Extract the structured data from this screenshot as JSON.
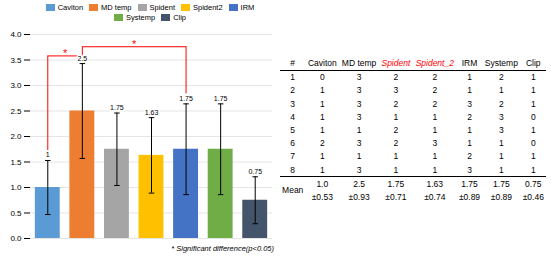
{
  "chart_data": {
    "type": "bar",
    "categories": [
      "Caviton",
      "MD temp",
      "Spident",
      "Spident2",
      "IRM",
      "Systemp",
      "Clip"
    ],
    "values": [
      1.0,
      2.5,
      1.75,
      1.63,
      1.75,
      1.75,
      0.75
    ],
    "errors": [
      0.53,
      0.93,
      0.71,
      0.74,
      0.89,
      0.89,
      0.46
    ],
    "colors": [
      "#5B9BD5",
      "#ED7D31",
      "#A5A5A5",
      "#FFC000",
      "#4472C4",
      "#70AD47",
      "#44546A"
    ],
    "ylim": [
      0,
      4
    ],
    "yticks": [
      {
        "value": 0,
        "label": "0.0"
      },
      0.5,
      {
        "value": 1.0,
        "label": "1.0"
      },
      1.5,
      {
        "value": 2.0,
        "label": "2.0"
      },
      2.5,
      {
        "value": 3.0,
        "label": "3.0"
      },
      3.5,
      {
        "value": 4.0,
        "label": "4.0"
      }
    ],
    "grid": true,
    "tick_labels": "y",
    "data_labels": true,
    "legend": "top",
    "annotations": [
      {
        "from": "Caviton",
        "to": "MD temp",
        "y": 3.58,
        "text": "*",
        "color": "red"
      },
      {
        "from": "MD temp",
        "to": "IRM",
        "y": 3.76,
        "text": "*",
        "color": "red"
      }
    ],
    "note": "* Significant difference(p<0.05)",
    "table": {
      "headers": [
        "#",
        "Caviton",
        "MD temp",
        "Spident",
        "Spident_2",
        "IRM",
        "Systemp",
        "Clip"
      ],
      "highlight": [
        "Spident",
        "Spident_2"
      ],
      "highlight_color": "red",
      "rows": [
        [
          1,
          0,
          3,
          2,
          2,
          1,
          2,
          1
        ],
        [
          2,
          1,
          3,
          3,
          2,
          1,
          1,
          1
        ],
        [
          3,
          1,
          3,
          2,
          2,
          3,
          2,
          1
        ],
        [
          4,
          1,
          3,
          1,
          1,
          2,
          3,
          0
        ],
        [
          5,
          1,
          1,
          2,
          1,
          1,
          3,
          1
        ],
        [
          6,
          2,
          3,
          2,
          3,
          1,
          1,
          0
        ],
        [
          7,
          1,
          1,
          1,
          1,
          2,
          1,
          1
        ],
        [
          8,
          1,
          3,
          1,
          1,
          3,
          1,
          1
        ]
      ],
      "mean_label": "Mean",
      "means": [
        "1.0",
        "2.5",
        "1.75",
        "1.63",
        "1.75",
        "1.75",
        "0.75"
      ],
      "errors": [
        "±0.53",
        "±0.93",
        "±0.71",
        "±0.74",
        "±0.89",
        "±0.89",
        "±0.46"
      ]
    }
  }
}
